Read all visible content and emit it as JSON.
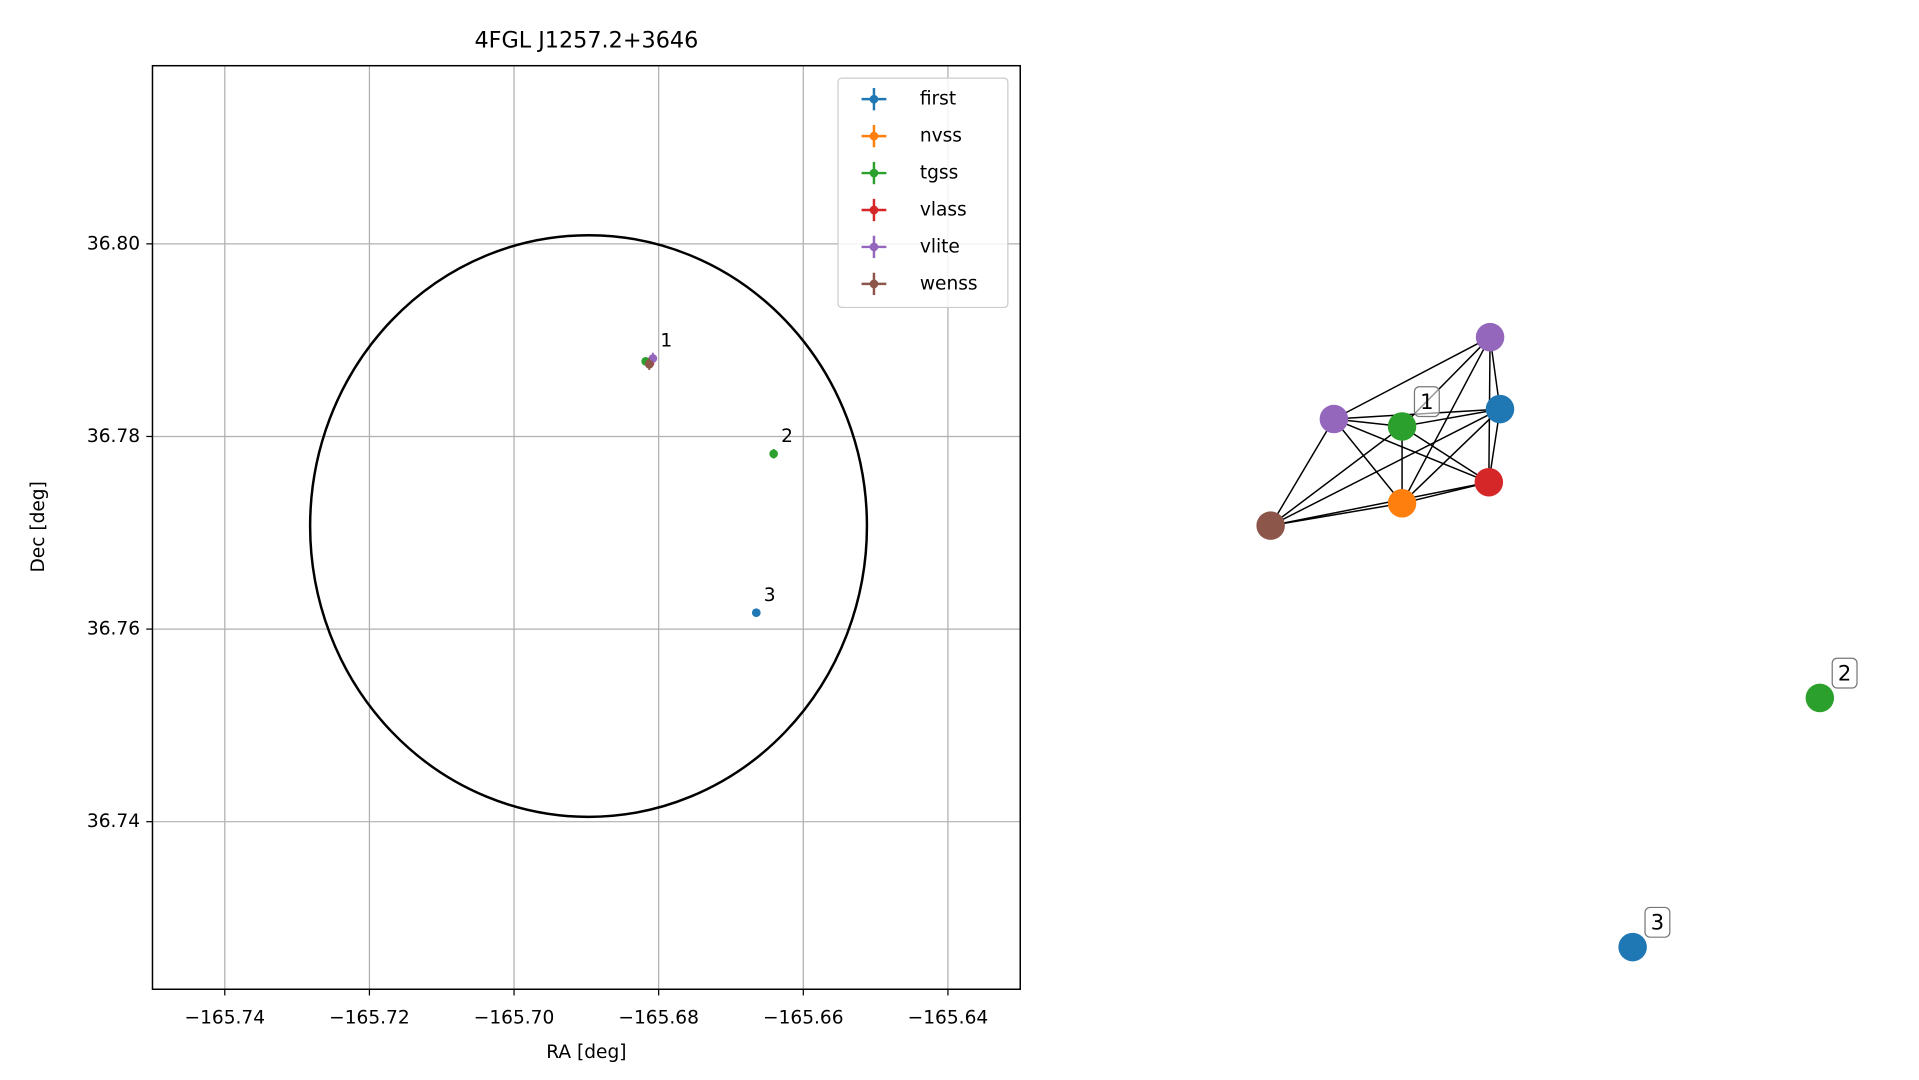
{
  "chart_data": [
    {
      "type": "scatter",
      "title": "4FGL J1257.2+3646",
      "xlabel": "RA [deg]",
      "ylabel": "Dec [deg]",
      "xlim": [
        -165.75,
        -165.63
      ],
      "ylim": [
        36.7226,
        36.8185
      ],
      "xticks": [
        {
          "value": -165.74,
          "label": "−165.74"
        },
        {
          "value": -165.72,
          "label": "−165.72"
        },
        {
          "value": -165.7,
          "label": "−165.70"
        },
        {
          "value": -165.68,
          "label": "−165.68"
        },
        {
          "value": -165.66,
          "label": "−165.66"
        },
        {
          "value": -165.64,
          "label": "−165.64"
        }
      ],
      "yticks": [
        36.74,
        36.76,
        36.78,
        {
          "value": 36.8,
          "label": "36.80"
        }
      ],
      "grid": true,
      "legend": "upper right",
      "ellipse": {
        "ra": -165.6897,
        "dec": 36.7707,
        "ra_radius": 0.0385,
        "dec_radius": 0.0302,
        "color": "#000000"
      },
      "series": [
        {
          "name": "first",
          "color": "#1f77b4",
          "x": [
            -165.6813,
            -165.6665
          ],
          "y": [
            36.7876,
            36.7617
          ],
          "xerr": [
            0.0002,
            0.0002
          ],
          "yerr": [
            0.0002,
            0.0002
          ]
        },
        {
          "name": "nvss",
          "color": "#ff7f0e",
          "x": [
            -165.6813
          ],
          "y": [
            36.7877
          ],
          "xerr": [
            0.0004
          ],
          "yerr": [
            0.0005
          ]
        },
        {
          "name": "tgss",
          "color": "#2ca02c",
          "x": [
            -165.6818,
            -165.6641
          ],
          "y": [
            36.7878,
            36.7782
          ],
          "xerr": [
            0.0003,
            0.0002
          ],
          "yerr": [
            0.0004,
            0.0005
          ]
        },
        {
          "name": "vlass",
          "color": "#d62728",
          "x": [
            -165.6812
          ],
          "y": [
            36.7876
          ],
          "xerr": [
            0.0002
          ],
          "yerr": [
            0.0002
          ]
        },
        {
          "name": "vlite",
          "color": "#9467bd",
          "x": [
            -165.6808
          ],
          "y": [
            36.7881
          ],
          "xerr": [
            0.0003
          ],
          "yerr": [
            0.0006
          ]
        },
        {
          "name": "wenss",
          "color": "#8c564b",
          "x": [
            -165.6813
          ],
          "y": [
            36.7875
          ],
          "xerr": [
            0.0005
          ],
          "yerr": [
            0.0006
          ]
        }
      ],
      "annotations": [
        {
          "text": "1",
          "x": -165.6808,
          "y": 36.7881
        },
        {
          "text": "2",
          "x": -165.6641,
          "y": 36.7782
        },
        {
          "text": "3",
          "x": -165.6665,
          "y": 36.7617
        }
      ]
    },
    {
      "type": "network",
      "nodes": [
        {
          "color": "#9467bd"
        },
        {
          "color": "#9467bd"
        },
        {
          "color": "#2ca02c"
        },
        {
          "color": "#1f77b4"
        },
        {
          "color": "#d62728"
        },
        {
          "color": "#ff7f0e"
        },
        {
          "color": "#8c564b"
        },
        {
          "color": "#2ca02c"
        },
        {
          "color": "#1f77b4"
        }
      ],
      "edges": [
        [
          0,
          1
        ],
        [
          0,
          2
        ],
        [
          0,
          3
        ],
        [
          0,
          4
        ],
        [
          0,
          5
        ],
        [
          1,
          2
        ],
        [
          1,
          3
        ],
        [
          1,
          4
        ],
        [
          1,
          5
        ],
        [
          1,
          6
        ],
        [
          2,
          3
        ],
        [
          2,
          4
        ],
        [
          2,
          5
        ],
        [
          2,
          6
        ],
        [
          3,
          4
        ],
        [
          3,
          5
        ],
        [
          3,
          6
        ],
        [
          4,
          5
        ],
        [
          4,
          6
        ],
        [
          5,
          6
        ]
      ],
      "labels": [
        {
          "text": "1",
          "node": 2
        },
        {
          "text": "2",
          "node": 7
        },
        {
          "text": "3",
          "node": 8
        }
      ]
    }
  ]
}
